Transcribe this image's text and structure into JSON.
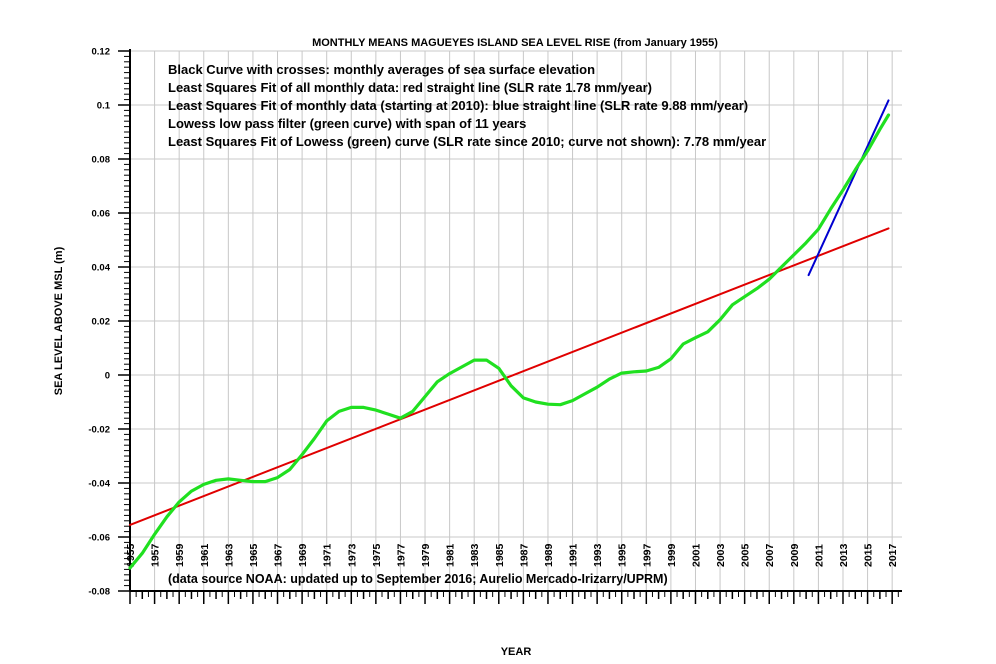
{
  "chart_data": {
    "type": "line",
    "title": "MONTHLY MEANS MAGUEYES ISLAND SEA LEVEL RISE (from January 1955)",
    "xlabel": "YEAR",
    "ylabel": "SEA LEVEL ABOVE MSL (m)",
    "xlim": [
      1955,
      2017.8
    ],
    "ylim": [
      -0.08,
      0.12
    ],
    "grid": true,
    "y_ticks": [
      -0.08,
      -0.06,
      -0.04,
      -0.02,
      0,
      0.02,
      0.04,
      0.06,
      0.08,
      0.1,
      0.12
    ],
    "y_tick_labels": [
      "-0.08",
      "-0.06",
      "-0.04",
      "-0.02",
      "0",
      "0.02",
      "0.04",
      "0.06",
      "0.08",
      "0.1",
      "0.12"
    ],
    "x_tick_labels": [
      "1955",
      "1957",
      "1959",
      "1961",
      "1963",
      "1965",
      "1967",
      "1969",
      "1971",
      "1973",
      "1975",
      "1977",
      "1979",
      "1981",
      "1983",
      "1985",
      "1987",
      "1989",
      "1991",
      "1993",
      "1995",
      "1997",
      "1999",
      "2001",
      "2003",
      "2005",
      "2007",
      "2009",
      "2011",
      "2013",
      "2015",
      "2017"
    ],
    "annotations": [
      "Black Curve with crosses: monthly averages of sea surface elevation",
      "Least Squares Fit of all monthly data: red straight line (SLR rate 1.78 mm/year)",
      "Least Squares Fit of monthly data (starting at 2010): blue straight line (SLR rate 9.88 mm/year)",
      "Lowess low pass filter (green curve) with span of 11 years",
      "Least Squares Fit of Lowess (green) curve (SLR rate since 2010; curve not shown): 7.78 mm/year"
    ],
    "footnote": "(data source NOAA: updated up to September 2016; Aurelio Mercado-Irizarry/UPRM)",
    "series": [
      {
        "name": "Least Squares Fit of all monthly data (red)",
        "color": "#e00000",
        "x": [
          1955.0,
          2016.7
        ],
        "y": [
          -0.0555,
          0.0543
        ]
      },
      {
        "name": "Least Squares Fit since 2010 (blue)",
        "color": "#0000d0",
        "x": [
          2010.2,
          2016.7
        ],
        "y": [
          0.037,
          0.1017
        ]
      },
      {
        "name": "Lowess low pass filter (green)",
        "color": "#20e020",
        "x": [
          1955.0,
          1956.0,
          1957.0,
          1958.0,
          1959.0,
          1960.0,
          1961.0,
          1962.0,
          1963.0,
          1964.0,
          1965.0,
          1966.0,
          1967.0,
          1968.0,
          1969.0,
          1970.0,
          1971.0,
          1972.0,
          1973.0,
          1974.0,
          1975.0,
          1976.0,
          1977.0,
          1978.0,
          1979.0,
          1980.0,
          1981.0,
          1982.0,
          1983.0,
          1984.0,
          1985.0,
          1986.0,
          1987.0,
          1988.0,
          1989.0,
          1990.0,
          1991.0,
          1992.0,
          1993.0,
          1994.0,
          1995.0,
          1996.0,
          1997.0,
          1998.0,
          1999.0,
          2000.0,
          2001.0,
          2002.0,
          2003.0,
          2004.0,
          2005.0,
          2006.0,
          2007.0,
          2008.0,
          2009.0,
          2010.0,
          2011.0,
          2012.0,
          2013.0,
          2014.0,
          2015.0,
          2016.0,
          2016.7
        ],
        "y": [
          -0.0715,
          -0.066,
          -0.059,
          -0.0525,
          -0.047,
          -0.043,
          -0.0405,
          -0.039,
          -0.0385,
          -0.039,
          -0.0395,
          -0.0395,
          -0.038,
          -0.035,
          -0.0295,
          -0.0235,
          -0.017,
          -0.0135,
          -0.012,
          -0.012,
          -0.013,
          -0.0145,
          -0.016,
          -0.0135,
          -0.008,
          -0.0025,
          0.0005,
          0.003,
          0.0055,
          0.0055,
          0.0025,
          -0.004,
          -0.0085,
          -0.01,
          -0.0108,
          -0.011,
          -0.0095,
          -0.007,
          -0.0045,
          -0.0015,
          0.0007,
          0.0012,
          0.0015,
          0.0028,
          0.006,
          0.0115,
          0.0138,
          0.016,
          0.0205,
          0.026,
          0.029,
          0.032,
          0.0355,
          0.04,
          0.0445,
          0.049,
          0.054,
          0.0615,
          0.0685,
          0.076,
          0.083,
          0.091,
          0.0963
        ]
      }
    ]
  }
}
